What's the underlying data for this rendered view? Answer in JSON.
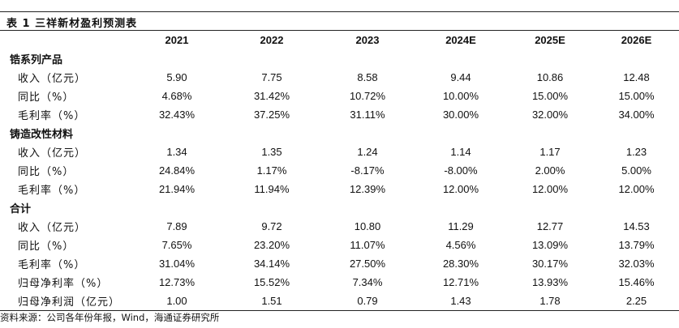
{
  "title": "表 1 三祥新材盈利预测表",
  "columns": [
    "2021",
    "2022",
    "2023",
    "2024E",
    "2025E",
    "2026E"
  ],
  "sections": [
    {
      "name": "锆系列产品",
      "rows": [
        {
          "label": "收入（亿元）",
          "values": [
            "5.90",
            "7.75",
            "8.58",
            "9.44",
            "10.86",
            "12.48"
          ]
        },
        {
          "label": "同比（%）",
          "values": [
            "4.68%",
            "31.42%",
            "10.72%",
            "10.00%",
            "15.00%",
            "15.00%"
          ]
        },
        {
          "label": "毛利率（%）",
          "values": [
            "32.43%",
            "37.25%",
            "31.11%",
            "30.00%",
            "32.00%",
            "34.00%"
          ]
        }
      ]
    },
    {
      "name": "铸造改性材料",
      "rows": [
        {
          "label": "收入（亿元）",
          "values": [
            "1.34",
            "1.35",
            "1.24",
            "1.14",
            "1.17",
            "1.23"
          ]
        },
        {
          "label": "同比（%）",
          "values": [
            "24.84%",
            "1.17%",
            "-8.17%",
            "-8.00%",
            "2.00%",
            "5.00%"
          ]
        },
        {
          "label": "毛利率（%）",
          "values": [
            "21.94%",
            "11.94%",
            "12.39%",
            "12.00%",
            "12.00%",
            "12.00%"
          ]
        }
      ]
    },
    {
      "name": "合计",
      "rows": [
        {
          "label": "收入（亿元）",
          "values": [
            "7.89",
            "9.72",
            "10.80",
            "11.29",
            "12.77",
            "14.53"
          ]
        },
        {
          "label": "同比（%）",
          "values": [
            "7.65%",
            "23.20%",
            "11.07%",
            "4.56%",
            "13.09%",
            "13.79%"
          ]
        },
        {
          "label": "毛利率（%）",
          "values": [
            "31.04%",
            "34.14%",
            "27.50%",
            "28.30%",
            "30.17%",
            "32.03%"
          ]
        },
        {
          "label": "归母净利率（%）",
          "values": [
            "12.73%",
            "15.52%",
            "7.34%",
            "12.71%",
            "13.93%",
            "15.46%"
          ]
        },
        {
          "label": "归母净利润（亿元）",
          "values": [
            "1.00",
            "1.51",
            "0.79",
            "1.43",
            "1.78",
            "2.25"
          ]
        }
      ]
    }
  ],
  "source": "资料来源：公司各年份年报，Wind，海通证券研究所"
}
